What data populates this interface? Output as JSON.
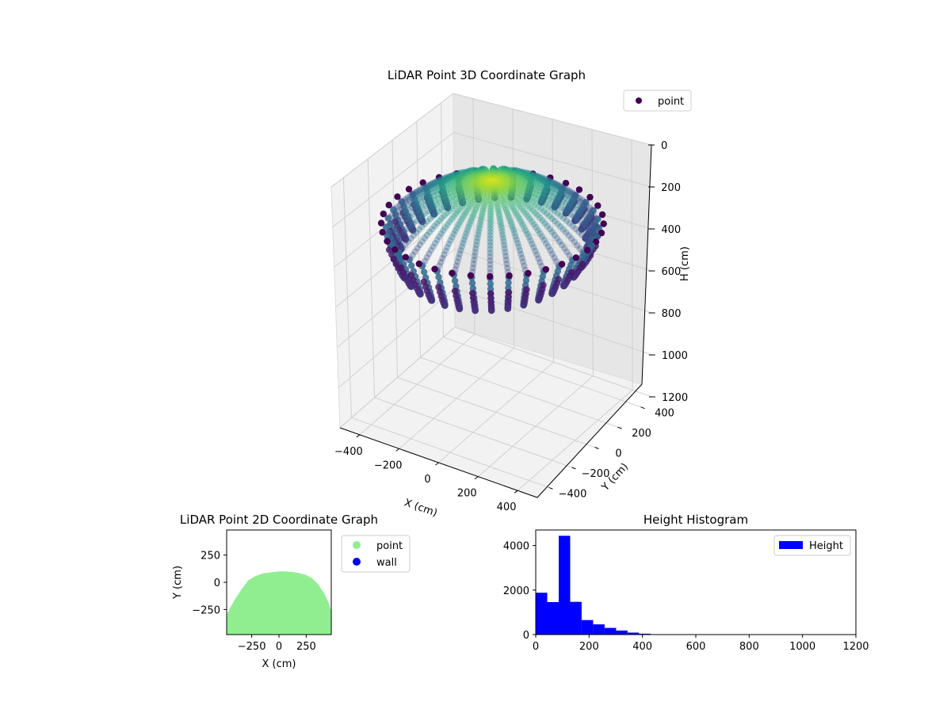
{
  "chart_data": [
    {
      "type": "scatter3d",
      "title": "LiDAR Point 3D Coordinate Graph",
      "xlabel": "X (cm)",
      "ylabel": "Y (cm)",
      "zlabel": "H (cm)",
      "xlim": [
        -500,
        500
      ],
      "ylim": [
        -500,
        500
      ],
      "zlim": [
        0,
        1200
      ],
      "z_inverted": true,
      "x_ticks": [
        -400,
        -200,
        0,
        200,
        400
      ],
      "y_ticks": [
        -400,
        -200,
        0,
        200,
        400
      ],
      "z_ticks": [
        0,
        200,
        400,
        600,
        800,
        1000,
        1200
      ],
      "legend": {
        "position": "top-right",
        "entries": [
          {
            "label": "point",
            "color": "#440154"
          }
        ]
      },
      "colormap": "viridis",
      "grid": true,
      "data_shape": {
        "kind": "dome of scan rings",
        "rings": 36,
        "dome_radius_cm": 460,
        "rim_height_cm": 300,
        "apex_height_cm": 80,
        "rim_hook_depth_cm": 190
      }
    },
    {
      "type": "scatter",
      "title": "LiDAR Point 2D Coordinate Graph",
      "xlabel": "X (cm)",
      "ylabel": "Y (cm)",
      "xlim": [
        -480,
        480
      ],
      "ylim": [
        -480,
        480
      ],
      "x_ticks": [
        -250,
        0,
        250
      ],
      "y_ticks": [
        -250,
        0,
        250
      ],
      "legend": {
        "position": "outside-right",
        "entries": [
          {
            "label": "point",
            "color": "#90ee90"
          },
          {
            "label": "wall",
            "color": "#0000ff"
          }
        ]
      },
      "region_outline": [
        [
          -480,
          -480
        ],
        [
          -480,
          -300
        ],
        [
          -440,
          -220
        ],
        [
          -400,
          -150
        ],
        [
          -340,
          -60
        ],
        [
          -280,
          20
        ],
        [
          -220,
          55
        ],
        [
          -160,
          78
        ],
        [
          -100,
          88
        ],
        [
          -40,
          96
        ],
        [
          0,
          100
        ],
        [
          60,
          99
        ],
        [
          120,
          95
        ],
        [
          180,
          86
        ],
        [
          240,
          70
        ],
        [
          300,
          40
        ],
        [
          360,
          -20
        ],
        [
          420,
          -110
        ],
        [
          460,
          -200
        ],
        [
          480,
          -270
        ],
        [
          480,
          -480
        ]
      ]
    },
    {
      "type": "bar",
      "title": "Height Histogram",
      "xlabel": "",
      "ylabel": "",
      "xlim": [
        0,
        1200
      ],
      "ylim": [
        0,
        4700
      ],
      "x_ticks": [
        0,
        200,
        400,
        600,
        800,
        1000,
        1200
      ],
      "y_ticks": [
        0,
        2000,
        4000
      ],
      "bin_width": 43,
      "bins": [
        0,
        43,
        86,
        129,
        172,
        215,
        258,
        301,
        344,
        387
      ],
      "values": [
        1880,
        1460,
        4440,
        1470,
        650,
        460,
        300,
        180,
        90,
        40
      ],
      "legend": {
        "position": "top-right",
        "entries": [
          {
            "label": "Height",
            "color": "#0000ff"
          }
        ]
      },
      "color": "#0000ff"
    }
  ]
}
